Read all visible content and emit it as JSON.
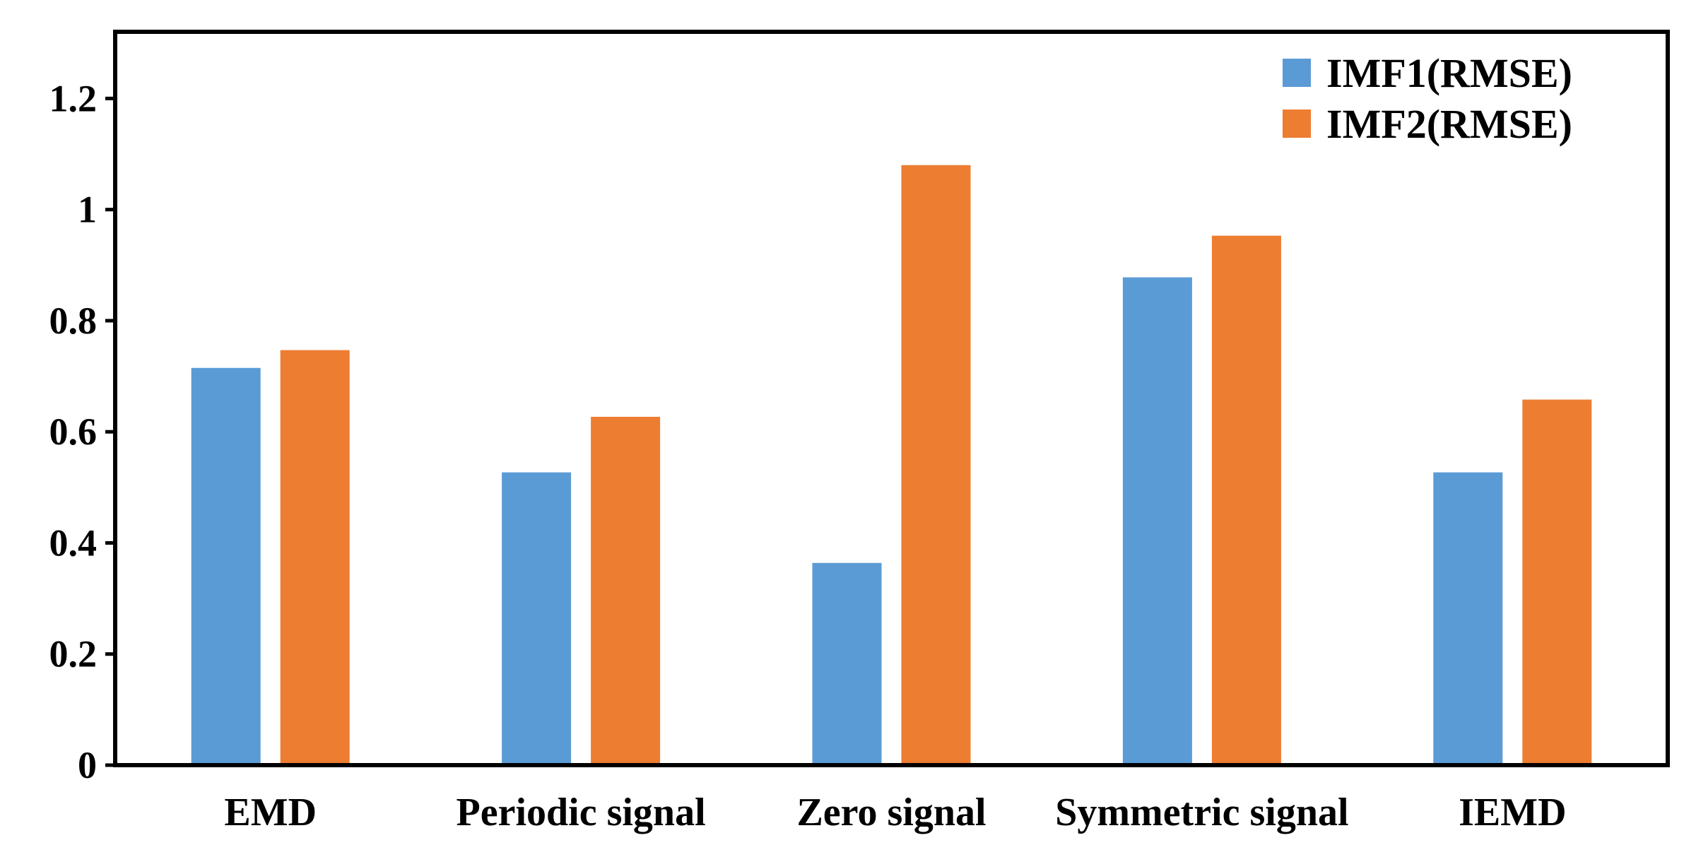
{
  "chart_data": {
    "type": "bar",
    "title": "",
    "xlabel": "",
    "ylabel": "",
    "categories": [
      "EMD",
      "Periodic signal",
      "Zero signal",
      "Symmetric signal",
      "IEMD"
    ],
    "series": [
      {
        "name": "IMF1(RMSE)",
        "color": "#5b9bd5",
        "values": [
          0.715,
          0.527,
          0.364,
          0.878,
          0.527
        ]
      },
      {
        "name": "IMF2(RMSE)",
        "color": "#ed7d31",
        "values": [
          0.747,
          0.627,
          1.08,
          0.953,
          0.658
        ]
      }
    ],
    "ylim": [
      0,
      1.32
    ],
    "yticks": [
      0,
      0.2,
      0.4,
      0.6,
      0.8,
      1,
      1.2
    ],
    "ytick_labels": [
      "0",
      "0.2",
      "0.4",
      "0.6",
      "0.8",
      "1",
      "1.2"
    ],
    "grid": false,
    "legend_position": "top-right"
  }
}
